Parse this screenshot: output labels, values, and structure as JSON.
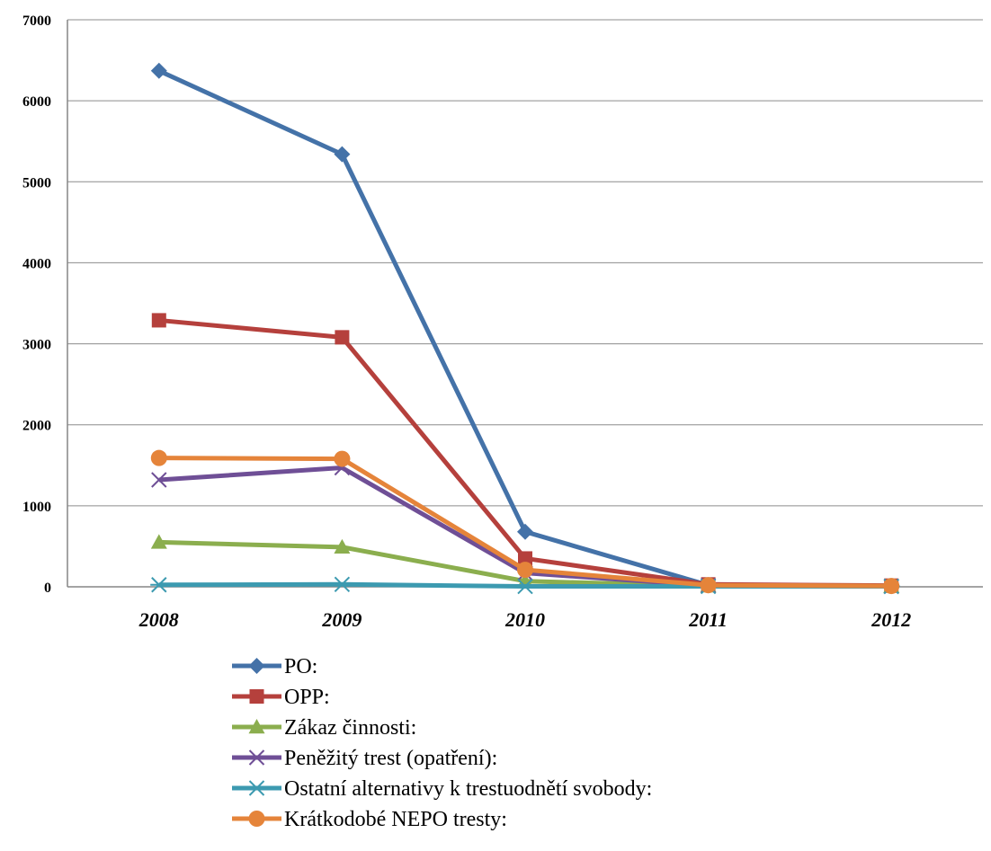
{
  "chart_data": {
    "type": "line",
    "categories": [
      "2008",
      "2009",
      "2010",
      "2011",
      "2012"
    ],
    "ylim": [
      0,
      7000
    ],
    "yticks": [
      0,
      1000,
      2000,
      3000,
      4000,
      5000,
      6000,
      7000
    ],
    "grid": true,
    "legend_position": "bottom",
    "series": [
      {
        "name": "PO:",
        "values": [
          6370,
          5340,
          680,
          20,
          10
        ],
        "color": "#4472A8",
        "marker": "diamond"
      },
      {
        "name": "OPP:",
        "values": [
          3290,
          3080,
          350,
          30,
          15
        ],
        "color": "#B5403C",
        "marker": "square"
      },
      {
        "name": "Zákaz činnosti:",
        "values": [
          550,
          490,
          70,
          10,
          5
        ],
        "color": "#8BAE4E",
        "marker": "triangle"
      },
      {
        "name": "Peněžitý trest (opatření):",
        "values": [
          1320,
          1470,
          170,
          15,
          5
        ],
        "color": "#6F4F96",
        "marker": "x"
      },
      {
        "name": "Ostatní alternativy k trestuodnětí svobody:",
        "values": [
          25,
          30,
          5,
          5,
          5
        ],
        "color": "#3C9AB0",
        "marker": "star"
      },
      {
        "name": "Krátkodobé NEPO tresty:",
        "values": [
          1590,
          1580,
          210,
          20,
          10
        ],
        "color": "#E5843A",
        "marker": "circle"
      }
    ]
  }
}
